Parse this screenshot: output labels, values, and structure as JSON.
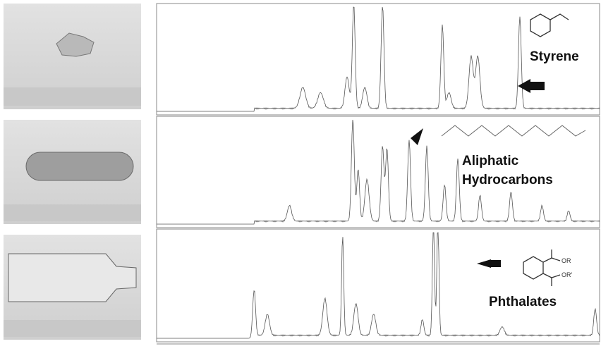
{
  "panels": [
    {
      "label": "Styrene"
    },
    {
      "label_lines": [
        "Aliphatic",
        "Hydrocarbons"
      ]
    },
    {
      "label": "Phthalates",
      "substituents": [
        "OR",
        "OR'"
      ]
    }
  ]
}
